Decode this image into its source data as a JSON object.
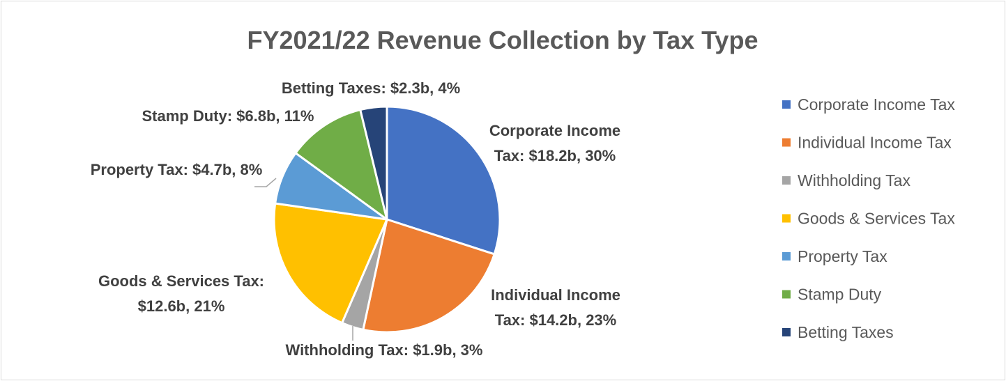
{
  "chart_data": {
    "type": "pie",
    "title": "FY2021/22 Revenue Collection by Tax Type",
    "legend_position": "right",
    "slices": [
      {
        "name": "Corporate Income Tax",
        "value": 18.2,
        "percent": 30,
        "color": "#4472C4",
        "label_lines": [
          "Corporate Income",
          "Tax: $18.2b, 30%"
        ]
      },
      {
        "name": "Individual Income Tax",
        "value": 14.2,
        "percent": 23,
        "color": "#ED7D31",
        "label_lines": [
          "Individual Income",
          "Tax: $14.2b, 23%"
        ]
      },
      {
        "name": "Withholding Tax",
        "value": 1.9,
        "percent": 3,
        "color": "#A5A5A5",
        "label_lines": [
          "Withholding Tax: $1.9b, 3%"
        ]
      },
      {
        "name": "Goods & Services Tax",
        "value": 12.6,
        "percent": 21,
        "color": "#FFC000",
        "label_lines": [
          "Goods & Services Tax:",
          "$12.6b, 21%"
        ]
      },
      {
        "name": "Property Tax",
        "value": 4.7,
        "percent": 8,
        "color": "#5B9BD5",
        "label_lines": [
          "Property Tax: $4.7b, 8%"
        ]
      },
      {
        "name": "Stamp Duty",
        "value": 6.8,
        "percent": 11,
        "color": "#70AD47",
        "label_lines": [
          "Stamp Duty: $6.8b, 11%"
        ]
      },
      {
        "name": "Betting Taxes",
        "value": 2.3,
        "percent": 4,
        "color": "#264478",
        "label_lines": [
          "Betting Taxes: $2.3b, 4%"
        ]
      }
    ]
  }
}
